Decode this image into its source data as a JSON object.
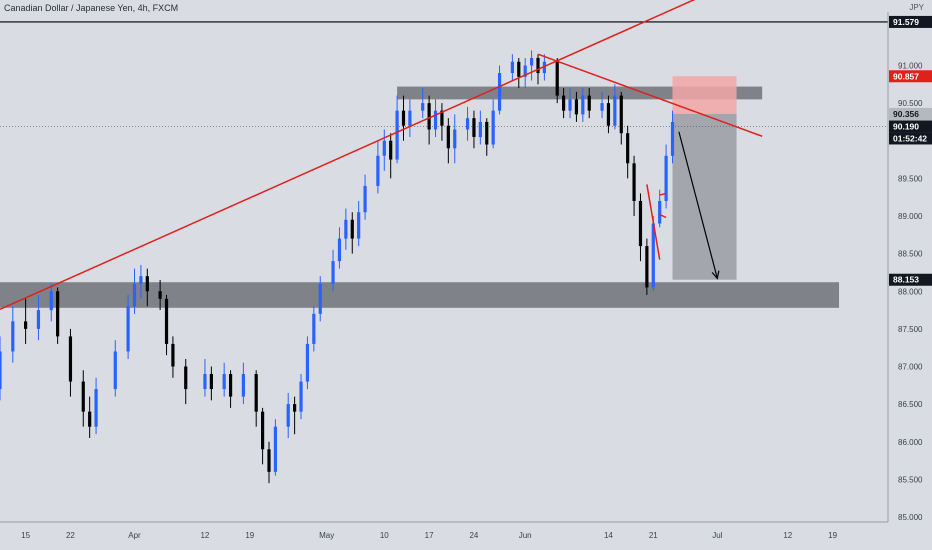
{
  "header": {
    "title": "Canadian Dollar / Japanese Yen, 4h, FXCM",
    "currency": "JPY"
  },
  "colors": {
    "background": "#d9dce3",
    "up_candle": "#2962ff",
    "down_candle": "#000000",
    "trendline": "#e0201b",
    "zone": "#5d5f66",
    "stop_zone": "#f2a6a6",
    "target_zone": "#9a9ca3",
    "arrow": "#000000"
  },
  "chart_data": {
    "type": "candlestick",
    "symbol": "CADJPY",
    "timeframe": "4h",
    "source": "FXCM",
    "y_ticks": [
      85.0,
      85.5,
      86.0,
      86.5,
      87.0,
      87.5,
      88.0,
      88.5,
      89.0,
      89.5,
      90.0,
      90.5,
      91.0
    ],
    "y_tick_labels": [
      "85.000",
      "85.500",
      "86.000",
      "86.500",
      "87.000",
      "87.500",
      "88.000",
      "88.500",
      "89.000",
      "89.500",
      "90.000",
      "90.500",
      "91.000"
    ],
    "ylim": [
      84.85,
      91.7
    ],
    "x_ticks": [
      "15",
      "22",
      "Apr",
      "12",
      "19",
      "May",
      "10",
      "17",
      "24",
      "Jun",
      "14",
      "21",
      "Jul",
      "12",
      "19"
    ],
    "price_labels": [
      {
        "value": "91.579",
        "price": 91.579,
        "style": "black"
      },
      {
        "value": "90.857",
        "price": 90.857,
        "style": "red"
      },
      {
        "value": "90.356",
        "price": 90.356,
        "style": "grey"
      },
      {
        "value": "90.190",
        "price": 90.19,
        "style": "black"
      },
      {
        "value": "01:52:42",
        "style": "countdown"
      },
      {
        "value": "88.153",
        "price": 88.153,
        "style": "black"
      }
    ],
    "horizontal_line": 91.579,
    "current_price": 90.19,
    "zones": [
      {
        "name": "resistance-zone",
        "from": 90.55,
        "to": 90.72,
        "x_range": [
          "May 12",
          "Jul 8"
        ]
      },
      {
        "name": "support-zone",
        "from": 87.78,
        "to": 88.12,
        "x_range": [
          "Mar 11",
          "Jul 20"
        ]
      }
    ],
    "position": {
      "type": "short",
      "entry": 90.356,
      "stop": 90.857,
      "target": 88.153,
      "x_range": [
        "Jun 24",
        "Jul 4"
      ]
    },
    "trendlines": [
      {
        "from": [
          "Mar 11",
          87.76
        ],
        "to": [
          "Jul 2",
          92.05
        ]
      },
      {
        "from": [
          "Jun 3",
          91.15
        ],
        "to": [
          "Jul 8",
          90.06
        ]
      },
      {
        "from": [
          "Jun 20",
          89.42
        ],
        "to": [
          "Jun 22",
          88.42
        ]
      },
      {
        "from": [
          "Jun 22",
          89.02
        ],
        "to": [
          "Jun 23",
          88.98
        ]
      },
      {
        "from": [
          "Jun 22",
          89.28
        ],
        "to": [
          "Jun 23",
          89.3
        ]
      }
    ],
    "arrow": {
      "from": [
        "Jun 25",
        90.12
      ],
      "to": [
        "Jul 1",
        88.17
      ]
    },
    "series": [
      {
        "x": "Mar 11",
        "o": 86.7,
        "c": 87.2,
        "h": 87.4,
        "l": 86.55
      },
      {
        "x": "Mar 13",
        "o": 87.2,
        "c": 87.6,
        "h": 87.8,
        "l": 87.05
      },
      {
        "x": "Mar 15",
        "o": 87.6,
        "c": 87.5,
        "h": 87.9,
        "l": 87.3
      },
      {
        "x": "Mar 17",
        "o": 87.5,
        "c": 87.75,
        "h": 87.95,
        "l": 87.35
      },
      {
        "x": "Mar 19",
        "o": 87.75,
        "c": 88.0,
        "h": 88.1,
        "l": 87.6
      },
      {
        "x": "Mar 20",
        "o": 88.0,
        "c": 87.4,
        "h": 88.05,
        "l": 87.3
      },
      {
        "x": "Mar 22",
        "o": 87.4,
        "c": 86.8,
        "h": 87.5,
        "l": 86.6
      },
      {
        "x": "Mar 24",
        "o": 86.8,
        "c": 86.4,
        "h": 86.95,
        "l": 86.2
      },
      {
        "x": "Mar 25",
        "o": 86.4,
        "c": 86.2,
        "h": 86.6,
        "l": 86.05
      },
      {
        "x": "Mar 26",
        "o": 86.2,
        "c": 86.7,
        "h": 86.85,
        "l": 86.1
      },
      {
        "x": "Mar 29",
        "o": 86.7,
        "c": 87.2,
        "h": 87.35,
        "l": 86.6
      },
      {
        "x": "Mar 31",
        "o": 87.2,
        "c": 87.8,
        "h": 87.95,
        "l": 87.1
      },
      {
        "x": "Apr 1",
        "o": 87.8,
        "c": 88.1,
        "h": 88.3,
        "l": 87.7
      },
      {
        "x": "Apr 2",
        "o": 88.1,
        "c": 88.2,
        "h": 88.35,
        "l": 87.9
      },
      {
        "x": "Apr 3",
        "o": 88.2,
        "c": 88.0,
        "h": 88.3,
        "l": 87.8
      },
      {
        "x": "Apr 5",
        "o": 88.0,
        "c": 87.9,
        "h": 88.15,
        "l": 87.75
      },
      {
        "x": "Apr 6",
        "o": 87.9,
        "c": 87.3,
        "h": 87.95,
        "l": 87.15
      },
      {
        "x": "Apr 7",
        "o": 87.3,
        "c": 87.0,
        "h": 87.4,
        "l": 86.85
      },
      {
        "x": "Apr 9",
        "o": 87.0,
        "c": 86.7,
        "h": 87.1,
        "l": 86.5
      },
      {
        "x": "Apr 12",
        "o": 86.7,
        "c": 86.9,
        "h": 87.1,
        "l": 86.6
      },
      {
        "x": "Apr 13",
        "o": 86.9,
        "c": 86.7,
        "h": 87.0,
        "l": 86.55
      },
      {
        "x": "Apr 15",
        "o": 86.7,
        "c": 86.9,
        "h": 87.05,
        "l": 86.6
      },
      {
        "x": "Apr 16",
        "o": 86.9,
        "c": 86.6,
        "h": 86.95,
        "l": 86.45
      },
      {
        "x": "Apr 18",
        "o": 86.6,
        "c": 86.9,
        "h": 87.05,
        "l": 86.5
      },
      {
        "x": "Apr 20",
        "o": 86.9,
        "c": 86.4,
        "h": 86.95,
        "l": 86.2
      },
      {
        "x": "Apr 21",
        "o": 86.4,
        "c": 85.9,
        "h": 86.45,
        "l": 85.7
      },
      {
        "x": "Apr 22",
        "o": 85.9,
        "c": 85.6,
        "h": 86.0,
        "l": 85.45
      },
      {
        "x": "Apr 23",
        "o": 85.6,
        "c": 86.2,
        "h": 86.3,
        "l": 85.55
      },
      {
        "x": "Apr 25",
        "o": 86.2,
        "c": 86.5,
        "h": 86.65,
        "l": 86.05
      },
      {
        "x": "Apr 26",
        "o": 86.5,
        "c": 86.4,
        "h": 86.6,
        "l": 86.1
      },
      {
        "x": "Apr 27",
        "o": 86.4,
        "c": 86.8,
        "h": 86.9,
        "l": 86.3
      },
      {
        "x": "Apr 28",
        "o": 86.8,
        "c": 87.3,
        "h": 87.4,
        "l": 86.7
      },
      {
        "x": "Apr 29",
        "o": 87.3,
        "c": 87.7,
        "h": 87.8,
        "l": 87.2
      },
      {
        "x": "Apr 30",
        "o": 87.7,
        "c": 88.1,
        "h": 88.2,
        "l": 87.6
      },
      {
        "x": "May 2",
        "o": 88.1,
        "c": 88.4,
        "h": 88.55,
        "l": 88.0
      },
      {
        "x": "May 3",
        "o": 88.4,
        "c": 88.7,
        "h": 88.85,
        "l": 88.3
      },
      {
        "x": "May 4",
        "o": 88.7,
        "c": 88.95,
        "h": 89.1,
        "l": 88.55
      },
      {
        "x": "May 5",
        "o": 88.95,
        "c": 88.7,
        "h": 89.05,
        "l": 88.5
      },
      {
        "x": "May 6",
        "o": 88.7,
        "c": 89.05,
        "h": 89.2,
        "l": 88.6
      },
      {
        "x": "May 7",
        "o": 89.05,
        "c": 89.4,
        "h": 89.55,
        "l": 88.95
      },
      {
        "x": "May 9",
        "o": 89.4,
        "c": 89.8,
        "h": 90.0,
        "l": 89.3
      },
      {
        "x": "May 10",
        "o": 89.8,
        "c": 90.0,
        "h": 90.15,
        "l": 89.6
      },
      {
        "x": "May 11",
        "o": 90.0,
        "c": 89.75,
        "h": 90.1,
        "l": 89.5
      },
      {
        "x": "May 12",
        "o": 89.75,
        "c": 90.4,
        "h": 90.6,
        "l": 89.7
      },
      {
        "x": "May 13",
        "o": 90.4,
        "c": 90.2,
        "h": 90.6,
        "l": 90.0
      },
      {
        "x": "May 14",
        "o": 90.2,
        "c": 90.4,
        "h": 90.55,
        "l": 90.05
      },
      {
        "x": "May 16",
        "o": 90.4,
        "c": 90.5,
        "h": 90.7,
        "l": 90.3
      },
      {
        "x": "May 17",
        "o": 90.5,
        "c": 90.15,
        "h": 90.6,
        "l": 89.95
      },
      {
        "x": "May 18",
        "o": 90.15,
        "c": 90.4,
        "h": 90.55,
        "l": 90.05
      },
      {
        "x": "May 19",
        "o": 90.4,
        "c": 90.2,
        "h": 90.5,
        "l": 90.0
      },
      {
        "x": "May 20",
        "o": 90.2,
        "c": 89.9,
        "h": 90.3,
        "l": 89.7
      },
      {
        "x": "May 21",
        "o": 89.9,
        "c": 90.15,
        "h": 90.35,
        "l": 89.7
      },
      {
        "x": "May 23",
        "o": 90.15,
        "c": 90.3,
        "h": 90.45,
        "l": 90.0
      },
      {
        "x": "May 24",
        "o": 90.3,
        "c": 90.05,
        "h": 90.4,
        "l": 89.9
      },
      {
        "x": "May 25",
        "o": 90.05,
        "c": 90.25,
        "h": 90.4,
        "l": 89.95
      },
      {
        "x": "May 26",
        "o": 90.25,
        "c": 89.95,
        "h": 90.3,
        "l": 89.8
      },
      {
        "x": "May 27",
        "o": 89.95,
        "c": 90.4,
        "h": 90.55,
        "l": 89.9
      },
      {
        "x": "May 28",
        "o": 90.4,
        "c": 90.9,
        "h": 91.0,
        "l": 90.35
      },
      {
        "x": "May 30",
        "o": 90.9,
        "c": 91.05,
        "h": 91.15,
        "l": 90.8
      },
      {
        "x": "May 31",
        "o": 91.05,
        "c": 90.85,
        "h": 91.1,
        "l": 90.7
      },
      {
        "x": "Jun 1",
        "o": 90.85,
        "c": 91.0,
        "h": 91.1,
        "l": 90.7
      },
      {
        "x": "Jun 2",
        "o": 91.0,
        "c": 91.1,
        "h": 91.2,
        "l": 90.8
      },
      {
        "x": "Jun 3",
        "o": 91.1,
        "c": 90.9,
        "h": 91.15,
        "l": 90.75
      },
      {
        "x": "Jun 4",
        "o": 90.9,
        "c": 91.05,
        "h": 91.15,
        "l": 90.8
      },
      {
        "x": "Jun 6",
        "o": 91.05,
        "c": 90.6,
        "h": 91.1,
        "l": 90.5
      },
      {
        "x": "Jun 7",
        "o": 90.6,
        "c": 90.4,
        "h": 90.7,
        "l": 90.3
      },
      {
        "x": "Jun 8",
        "o": 90.4,
        "c": 90.55,
        "h": 90.7,
        "l": 90.3
      },
      {
        "x": "Jun 9",
        "o": 90.55,
        "c": 90.35,
        "h": 90.65,
        "l": 90.25
      },
      {
        "x": "Jun 10",
        "o": 90.35,
        "c": 90.6,
        "h": 90.7,
        "l": 90.25
      },
      {
        "x": "Jun 11",
        "o": 90.6,
        "c": 90.4,
        "h": 90.7,
        "l": 90.3
      },
      {
        "x": "Jun 13",
        "o": 90.4,
        "c": 90.5,
        "h": 90.65,
        "l": 90.3
      },
      {
        "x": "Jun 14",
        "o": 90.5,
        "c": 90.2,
        "h": 90.6,
        "l": 90.1
      },
      {
        "x": "Jun 15",
        "o": 90.2,
        "c": 90.6,
        "h": 90.75,
        "l": 90.15
      },
      {
        "x": "Jun 16",
        "o": 90.6,
        "c": 90.1,
        "h": 90.65,
        "l": 89.95
      },
      {
        "x": "Jun 17",
        "o": 90.1,
        "c": 89.7,
        "h": 90.2,
        "l": 89.5
      },
      {
        "x": "Jun 18",
        "o": 89.7,
        "c": 89.2,
        "h": 89.8,
        "l": 89.0
      },
      {
        "x": "Jun 19",
        "o": 89.2,
        "c": 88.6,
        "h": 89.3,
        "l": 88.4
      },
      {
        "x": "Jun 20",
        "o": 88.6,
        "c": 88.05,
        "h": 88.7,
        "l": 87.95
      },
      {
        "x": "Jun 21",
        "o": 88.05,
        "c": 88.9,
        "h": 89.0,
        "l": 88.0
      },
      {
        "x": "Jun 22",
        "o": 88.9,
        "c": 89.2,
        "h": 89.35,
        "l": 88.85
      },
      {
        "x": "Jun 23",
        "o": 89.2,
        "c": 89.8,
        "h": 89.95,
        "l": 89.1
      },
      {
        "x": "Jun 24",
        "o": 89.8,
        "c": 90.25,
        "h": 90.4,
        "l": 89.7
      }
    ]
  }
}
